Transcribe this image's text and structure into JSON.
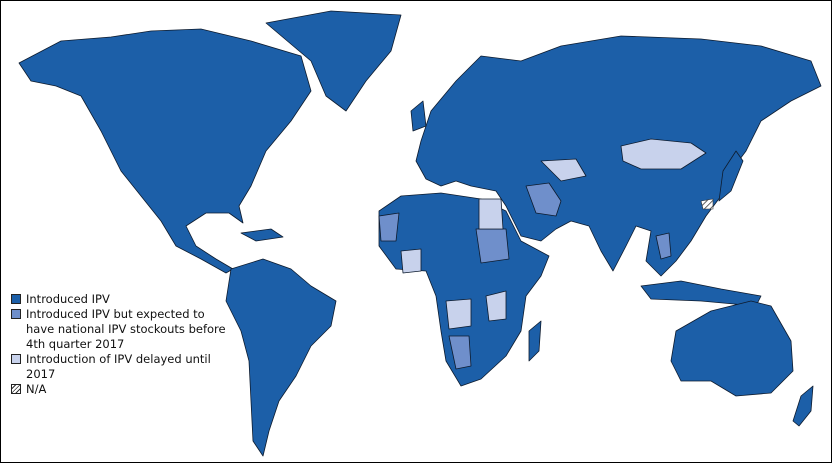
{
  "legend": {
    "items": [
      {
        "label": "Introduced IPV",
        "color": "#1c5fa8"
      },
      {
        "label": "Introduced IPV but expected to have national IPV stockouts before 4th quarter 2017",
        "color": "#6f8fcb"
      },
      {
        "label": "Introduction of IPV delayed until 2017",
        "color": "#c8d2ec"
      },
      {
        "label": "N/A",
        "pattern": "hatched"
      }
    ]
  },
  "colors": {
    "introduced": "#1c5fa8",
    "stockout": "#6f8fcb",
    "delayed": "#c8d2ec",
    "border": "#0d1b2e"
  }
}
